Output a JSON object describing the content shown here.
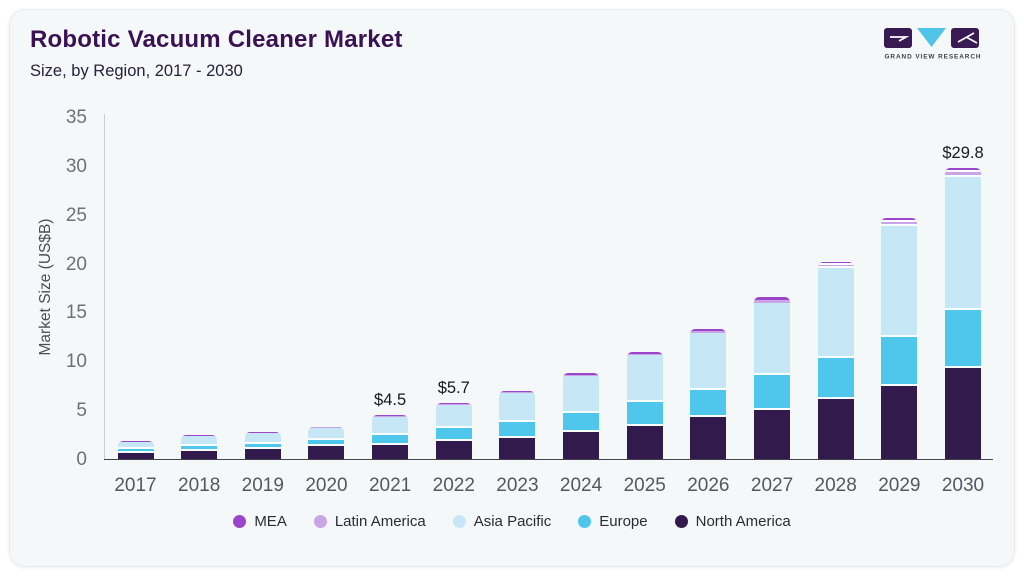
{
  "header": {
    "title": "Robotic Vacuum Cleaner Market",
    "subtitle": "Size, by Region, 2017 - 2030",
    "logo_text": "GRAND VIEW RESEARCH"
  },
  "colors": {
    "title": "#3a1253",
    "card_background": "#f4f8f9",
    "mea": "#9b45cb",
    "latin_america": "#c9a4e6",
    "asia_pacific": "#c5e7f6",
    "europe": "#4fc6ec",
    "north_america": "#321b4c",
    "logo_dark": "#3a1a52",
    "logo_cyan": "#4fc3e8"
  },
  "chart_data": {
    "type": "bar",
    "stacked": true,
    "title": "Robotic Vacuum Cleaner Market",
    "subtitle": "Size, by Region, 2017 - 2030",
    "ylabel": "Market Size (US$B)",
    "ylim": [
      0,
      35
    ],
    "yticks": [
      0,
      5,
      10,
      15,
      20,
      25,
      30,
      35
    ],
    "grid": false,
    "legend_position": "bottom",
    "categories": [
      "2017",
      "2018",
      "2019",
      "2020",
      "2021",
      "2022",
      "2023",
      "2024",
      "2025",
      "2026",
      "2027",
      "2028",
      "2029",
      "2030"
    ],
    "series": [
      {
        "name": "North America",
        "color": "#321b4c",
        "values": [
          0.6,
          0.85,
          1.05,
          1.3,
          1.4,
          1.8,
          2.2,
          2.8,
          3.4,
          4.3,
          5.05,
          6.1,
          7.5,
          9.3
        ]
      },
      {
        "name": "Europe",
        "color": "#4fc6ec",
        "values": [
          0.45,
          0.5,
          0.5,
          0.65,
          1.1,
          1.4,
          1.55,
          1.9,
          2.4,
          2.8,
          3.5,
          4.2,
          5.0,
          6.0
        ]
      },
      {
        "name": "Asia Pacific",
        "color": "#c5e7f6",
        "values": [
          0.7,
          1.0,
          1.1,
          1.25,
          1.8,
          2.3,
          3.0,
          3.8,
          4.8,
          5.8,
          7.4,
          9.2,
          11.3,
          13.55
        ]
      },
      {
        "name": "Latin America",
        "color": "#c9a4e6",
        "values": [
          0.04,
          0.05,
          0.05,
          0.06,
          0.1,
          0.1,
          0.13,
          0.15,
          0.2,
          0.2,
          0.3,
          0.35,
          0.45,
          0.5
        ]
      },
      {
        "name": "MEA",
        "color": "#9b45cb",
        "values": [
          0.03,
          0.04,
          0.04,
          0.05,
          0.1,
          0.1,
          0.12,
          0.15,
          0.2,
          0.2,
          0.3,
          0.35,
          0.4,
          0.45
        ]
      }
    ],
    "totals": [
      1.82,
      2.44,
      2.74,
      3.31,
      4.5,
      5.7,
      7.0,
      8.8,
      11.0,
      13.3,
      16.55,
      20.2,
      24.65,
      29.8
    ],
    "annotations": [
      {
        "category": "2021",
        "label": "$4.5"
      },
      {
        "category": "2022",
        "label": "$5.7"
      },
      {
        "category": "2030",
        "label": "$29.8"
      }
    ],
    "legend": [
      "MEA",
      "Latin America",
      "Asia Pacific",
      "Europe",
      "North America"
    ]
  }
}
